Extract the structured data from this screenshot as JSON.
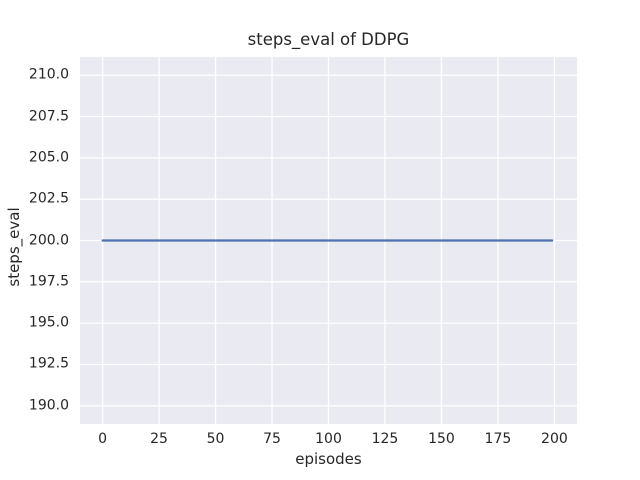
{
  "chart_data": {
    "type": "line",
    "title": "steps_eval of DDPG",
    "xlabel": "episodes",
    "ylabel": "steps_eval",
    "xlim": [
      -10,
      210
    ],
    "ylim": [
      188.9,
      211.1
    ],
    "xticks": [
      0,
      25,
      50,
      75,
      100,
      125,
      150,
      175,
      200
    ],
    "xtick_labels": [
      "0",
      "25",
      "50",
      "75",
      "100",
      "125",
      "150",
      "175",
      "200"
    ],
    "yticks": [
      190.0,
      192.5,
      195.0,
      197.5,
      200.0,
      202.5,
      205.0,
      207.5,
      210.0
    ],
    "ytick_labels": [
      "190.0",
      "192.5",
      "195.0",
      "197.5",
      "200.0",
      "202.5",
      "205.0",
      "207.5",
      "210.0"
    ],
    "grid": true,
    "legend": false,
    "plot_background": "#EAEAF2",
    "grid_color": "#FFFFFF",
    "text_color": "#262626",
    "series": [
      {
        "name": "DDPG",
        "color": "#4C72B0",
        "x": [
          0,
          199
        ],
        "values": [
          200.0,
          200.0
        ]
      }
    ]
  }
}
